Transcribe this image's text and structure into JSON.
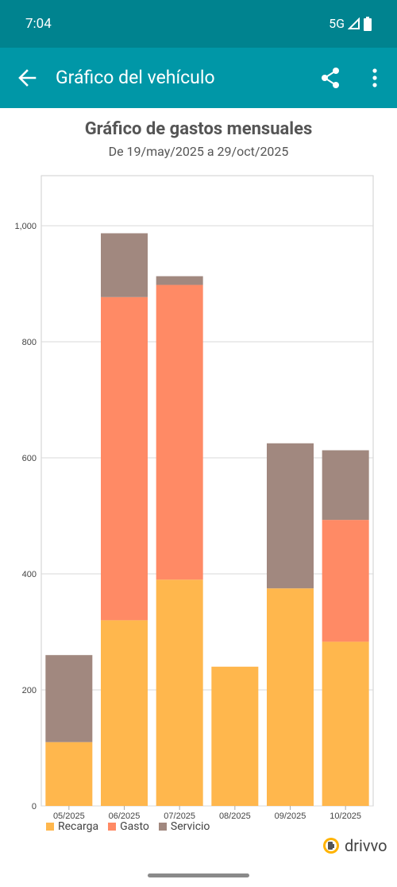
{
  "status": {
    "time": "7:04",
    "network": "5G"
  },
  "app_bar": {
    "title": "Gráfico del vehículo"
  },
  "chart_data": {
    "type": "bar",
    "stacked": true,
    "title": "Gráfico de gastos mensuales",
    "subtitle": "De 19/may/2025 a 29/oct/2025",
    "categories": [
      "05/2025",
      "06/2025",
      "07/2025",
      "08/2025",
      "09/2025",
      "10/2025"
    ],
    "series": [
      {
        "name": "Recarga",
        "color": "#ffb74d",
        "values": [
          110,
          320,
          390,
          240,
          375,
          283
        ]
      },
      {
        "name": "Gasto",
        "color": "#ff8a65",
        "values": [
          0,
          557,
          508,
          0,
          0,
          210
        ]
      },
      {
        "name": "Servicio",
        "color": "#a1887f",
        "values": [
          150,
          110,
          15,
          0,
          250,
          120
        ]
      }
    ],
    "ylim": [
      0,
      1000
    ],
    "yticks": [
      "0",
      "200",
      "400",
      "600",
      "800",
      "1,000"
    ],
    "grid": true,
    "legend_position": "bottom-left"
  },
  "brand": {
    "name": "drivvo"
  }
}
